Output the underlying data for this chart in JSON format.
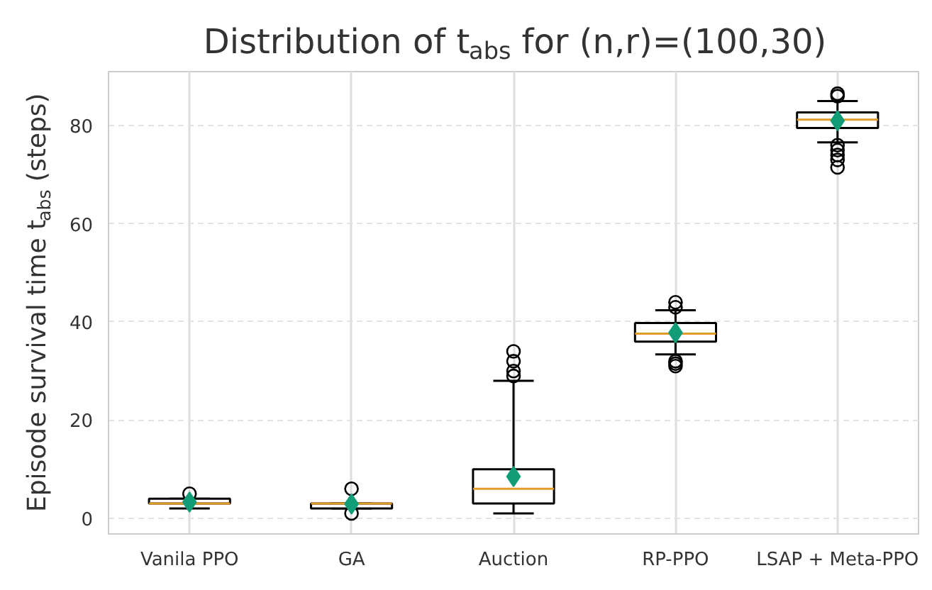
{
  "chart_data": {
    "type": "box",
    "title": "Distribution of t$_{abs}$ for (n,r)=(100,30)",
    "ylabel": "Episode survival time t$_{abs}$ (steps)",
    "categories": [
      "Vanila PPO",
      "GA",
      "Auction",
      "RP-PPO",
      "LSAP + Meta-PPO"
    ],
    "boxes": [
      {
        "low": 2,
        "q1": 3,
        "median": 3,
        "q3": 4,
        "high": 4,
        "mean": 3.3,
        "outliers": [
          5
        ]
      },
      {
        "low": 2,
        "q1": 2,
        "median": 3,
        "q3": 3,
        "high": 3,
        "mean": 2.9,
        "outliers": [
          6,
          1
        ]
      },
      {
        "low": 1,
        "q1": 3,
        "median": 6,
        "q3": 10,
        "high": 28,
        "mean": 8.5,
        "outliers": [
          29,
          30,
          32,
          34
        ]
      },
      {
        "low": 33.4,
        "q1": 36,
        "median": 37.6,
        "q3": 39.8,
        "high": 42.4,
        "mean": 37.8,
        "outliers": [
          43,
          44,
          32,
          31.5,
          31
        ]
      },
      {
        "low": 76.6,
        "q1": 79.5,
        "median": 81.2,
        "q3": 82.7,
        "high": 85,
        "mean": 81,
        "outliers": [
          86,
          86.5,
          76,
          75,
          74,
          73,
          71.5
        ]
      }
    ],
    "color": "#000000",
    "ylim": [
      -3.2,
      91
    ],
    "yticks": [
      0,
      20,
      40,
      60,
      80
    ],
    "grid": true
  }
}
